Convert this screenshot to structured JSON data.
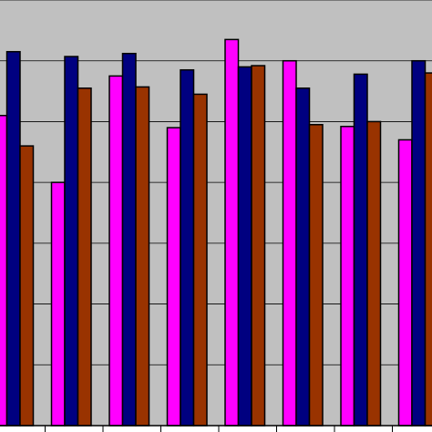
{
  "chart_data": {
    "type": "bar",
    "title": "",
    "xlabel": "",
    "ylabel": "",
    "ylim": [
      0,
      7
    ],
    "grid": true,
    "legend": "none",
    "categories": [
      "",
      "",
      "",
      "",
      "",
      "",
      "",
      ""
    ],
    "series": [
      {
        "color": "#ff00ff",
        "values": [
          5.1,
          4.0,
          5.75,
          4.9,
          6.35,
          6.0,
          4.92,
          4.7
        ]
      },
      {
        "color": "#000080",
        "values": [
          6.15,
          6.07,
          6.12,
          5.85,
          5.9,
          5.55,
          5.78,
          6.0
        ]
      },
      {
        "color": "#993300",
        "values": [
          4.6,
          5.55,
          5.57,
          5.45,
          5.92,
          4.95,
          5.0,
          5.8
        ]
      }
    ]
  }
}
